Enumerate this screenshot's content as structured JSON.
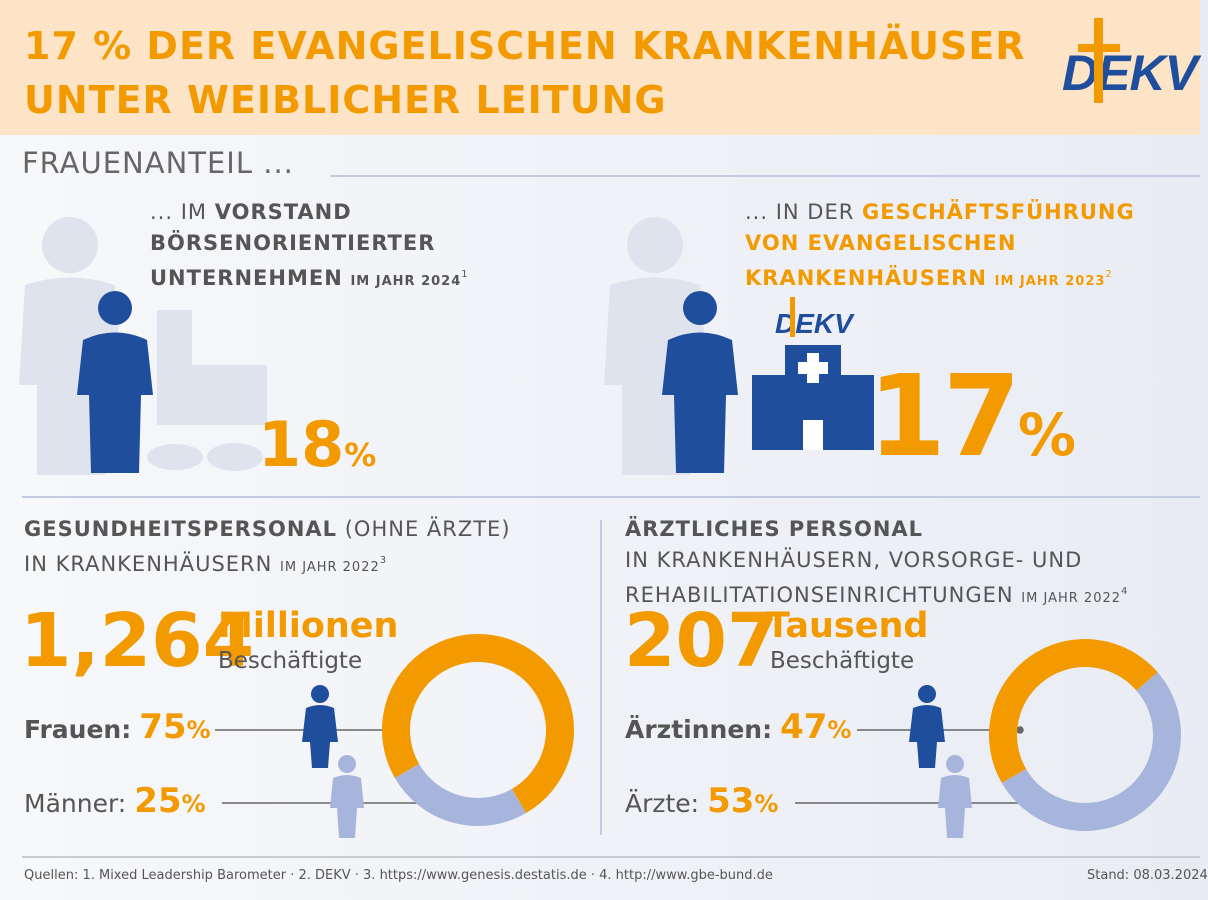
{
  "header": {
    "title_line1": "17 % DER EVANGELISCHEN KRANKENHÄUSER",
    "title_line2": "UNTER WEIBLICHER LEITUNG",
    "logo_text": "DEKV"
  },
  "section_title": "FRAUENANTEIL ...",
  "panel_board": {
    "prefix": "... IM ",
    "bold1": "VORSTAND",
    "line2": "BÖRSENORIENTIERTER",
    "line3": "UNTERNEHMEN",
    "year": "IM JAHR 2024",
    "sup": "1",
    "value": "18",
    "unit": "%"
  },
  "panel_hospital": {
    "prefix": "... IN DER ",
    "bold1": "GESCHÄFTSFÜHRUNG",
    "line2": "VON EVANGELISCHEN",
    "line3": "KRANKENHÄUSERN",
    "year": "IM JAHR 2023",
    "sup": "2",
    "value": "17",
    "unit": "%",
    "logo_text": "DEKV"
  },
  "health_staff": {
    "heading_bold": "GESUNDHEITSPERSONAL",
    "heading_rest": " (OHNE ÄRZTE)",
    "line2": "IN KRANKENHÄUSERN",
    "year": "IM JAHR 2022",
    "sup": "3",
    "total": "1,264",
    "total_unit": "Millionen",
    "total_label": "Beschäftigte",
    "women_label": "Frauen:",
    "women_value": "75",
    "men_label": "Männer:",
    "men_value": "25",
    "unit": "%"
  },
  "doctors": {
    "heading_bold": "ÄRZTLICHES PERSONAL",
    "line2": "IN KRANKENHÄUSERN, VORSORGE- UND",
    "line3": "REHABILITATIONSEINRICHTUNGEN",
    "year": "IM JAHR 2022",
    "sup": "4",
    "total": "207",
    "total_unit": "Tausend",
    "total_label": "Beschäftigte",
    "women_label": "Ärztinnen:",
    "women_value": "47",
    "men_label": "Ärzte:",
    "men_value": "53",
    "unit": "%"
  },
  "footer": {
    "sources": "Quellen: 1. Mixed Leadership Barometer · 2. DEKV · 3. https://www.genesis.destatis.de · 4. http://www.gbe-bund.de",
    "date": "Stand: 08.03.2024"
  },
  "colors": {
    "orange": "#f29a00",
    "blue": "#1f4e9c",
    "light": "#a7b5dd",
    "pale": "#dfe3ee"
  },
  "chart_data": [
    {
      "type": "pie",
      "title": "Gesundheitspersonal (ohne Ärzte) in Krankenhäusern 2022",
      "categories": [
        "Frauen",
        "Männer"
      ],
      "values": [
        75,
        25
      ],
      "unit": "%"
    },
    {
      "type": "pie",
      "title": "Ärztliches Personal 2022",
      "categories": [
        "Ärztinnen",
        "Ärzte"
      ],
      "values": [
        47,
        53
      ],
      "unit": "%"
    }
  ]
}
